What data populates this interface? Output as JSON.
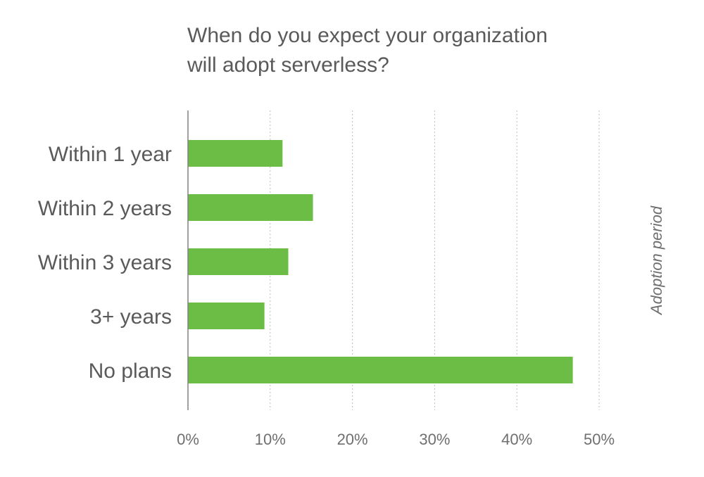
{
  "chart_data": {
    "type": "bar",
    "orientation": "horizontal",
    "title_lines": [
      "When do you expect your organization",
      "will adopt serverless?"
    ],
    "categories": [
      "Within 1 year",
      "Within 2 years",
      "Within 3 years",
      "3+ years",
      "No plans"
    ],
    "values": [
      11.5,
      15.2,
      12.2,
      9.3,
      46.8
    ],
    "value_unit": "%",
    "xlim": [
      0,
      50
    ],
    "xticks": [
      0,
      10,
      20,
      30,
      40,
      50
    ],
    "xtick_labels": [
      "0%",
      "10%",
      "20%",
      "30%",
      "40%",
      "50%"
    ],
    "ylabel": "Adoption period",
    "ylabel_position": "right",
    "grid": true,
    "bar_color": "#6cbd45"
  }
}
